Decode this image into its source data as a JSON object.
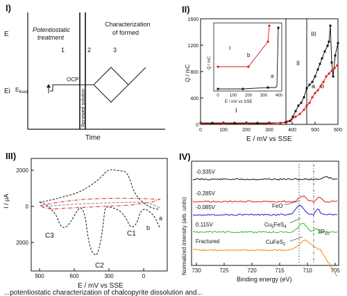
{
  "panel1": {
    "label": "I)",
    "y_top": "E",
    "y_bottom": "Ei",
    "step1_title_line1": "Potentiostatic",
    "step1_title_line2": "treatment",
    "step1_number": "1",
    "step2_number": "2",
    "step3_title_line1": "Characterization",
    "step3_title_line2": "of formed",
    "step3_number": "3",
    "e_fixed_main": "E",
    "e_fixed_sub": "fixed",
    "ocp": "OCP",
    "renewed": "Renewed solution",
    "x_label": "Time"
  },
  "panel2": {
    "label": "II)",
    "x_label": "E / mV vs SSE",
    "y_label": "Q / mC",
    "x_ticks": [
      "0",
      "100",
      "200",
      "300",
      "400",
      "500",
      "600"
    ],
    "y_ticks": [
      "0",
      "400",
      "800",
      "1200",
      "1600"
    ],
    "region_labels": [
      "I",
      "II",
      "III"
    ],
    "curve_labels": [
      "a",
      "b"
    ],
    "inset": {
      "x_label": "E / mV vs SSE",
      "y_label": "Q / mC",
      "x_ticks": [
        "0",
        "100",
        "200",
        "300",
        "400"
      ],
      "region_label": "I",
      "curve_labels": [
        "a",
        "b"
      ]
    }
  },
  "panel3": {
    "label": "III)",
    "x_label": "E / mV vs SSE",
    "y_label": "I / μA",
    "x_ticks": [
      "900",
      "600",
      "300",
      "0"
    ],
    "y_ticks": [
      "2000",
      "0",
      "2000"
    ],
    "peaks": [
      "C1",
      "C2",
      "C3"
    ],
    "curve_labels": [
      "a",
      "b"
    ]
  },
  "panel4": {
    "label": "IV)",
    "x_label": "Binding energy (eV)",
    "y_label": "Normalized intensity (arb. units)",
    "x_ticks": [
      "730",
      "725",
      "720",
      "715",
      "710",
      "705"
    ],
    "traces": [
      "-0.335V",
      "-0.285V",
      "-0.085V",
      "0.115V",
      "Fractured"
    ],
    "annotations": {
      "feo": "FeO",
      "cufes2_main": "Cu",
      "cufes2_sub": "5",
      "cufes2_tail": "FeS",
      "cufes2_sub2": "4",
      "cufes2_b": "CuFeS",
      "cufes2_b_sub": "2",
      "p3": "2P",
      "p3_sub": "3/2"
    }
  },
  "caption_fragment": "...potentiostatic characterization of chalcopyrite dissolution and..."
}
